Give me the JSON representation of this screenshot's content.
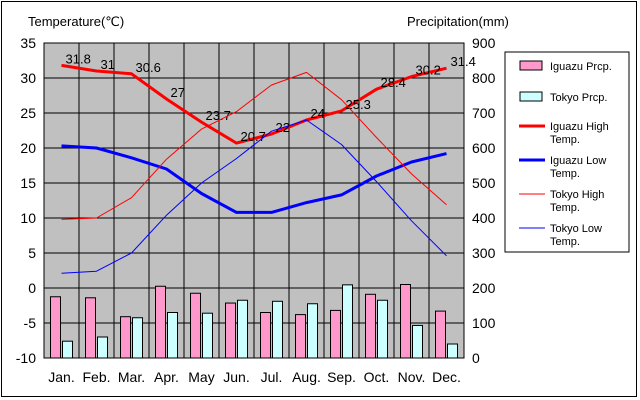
{
  "chart_data": {
    "type": "bar+line",
    "categories": [
      "Jan.",
      "Feb.",
      "Mar.",
      "Apr.",
      "May",
      "Jun.",
      "Jul.",
      "Aug.",
      "Sep.",
      "Oct.",
      "Nov.",
      "Dec."
    ],
    "left_axis": {
      "title": "Temperature(℃)",
      "range": [
        -10,
        35
      ],
      "ticks": [
        35,
        30,
        25,
        20,
        15,
        10,
        5,
        0,
        -5,
        -10
      ]
    },
    "right_axis": {
      "title": "Precipitation(mm)",
      "range": [
        0,
        900
      ],
      "ticks": [
        900,
        800,
        700,
        600,
        500,
        400,
        300,
        200,
        100,
        0
      ]
    },
    "grid": true,
    "plot_background": "#c0c0c0",
    "legend_position": "right",
    "bar_series": [
      {
        "name": "Iguazu Prcp.",
        "color": "#ff99cc",
        "values": [
          175,
          172,
          118,
          205,
          185,
          157,
          130,
          124,
          136,
          182,
          210,
          134
        ]
      },
      {
        "name": "Tokyo Prcp.",
        "color": "#ccffff",
        "values": [
          48,
          60,
          115,
          130,
          128,
          165,
          162,
          155,
          209,
          165,
          93,
          40
        ]
      }
    ],
    "line_series": [
      {
        "name": "Iguazu High Temp.",
        "color": "#ff0000",
        "width": 3,
        "values": [
          31.8,
          31,
          30.6,
          27,
          23.7,
          20.7,
          22,
          24,
          25.3,
          28.4,
          30.2,
          31.4
        ],
        "labels": [
          "31.8",
          "31",
          "30.6",
          "27",
          "23.7",
          "20.7",
          "22",
          "24",
          "25.3",
          "28.4",
          "30.2",
          "31.4"
        ]
      },
      {
        "name": "Iguazu Low Temp.",
        "color": "#0000ff",
        "width": 3,
        "values": [
          20.3,
          20,
          18.6,
          17,
          13.5,
          10.8,
          10.8,
          12.2,
          13.3,
          16,
          18,
          19.2
        ]
      },
      {
        "name": "Tokyo High Temp.",
        "color": "#ff0000",
        "width": 1,
        "values": [
          9.8,
          10,
          12.9,
          18.4,
          22.7,
          25.2,
          29,
          30.8,
          26.9,
          21.5,
          16.3,
          11.9
        ]
      },
      {
        "name": "Tokyo Low Temp.",
        "color": "#0000ff",
        "width": 1,
        "values": [
          2.1,
          2.4,
          5,
          10.4,
          15,
          18.5,
          22.4,
          24,
          20.5,
          15.2,
          9.6,
          4.6
        ]
      }
    ],
    "legend": [
      {
        "label": "Iguazu Prcp.",
        "kind": "box",
        "color": "#ff99cc"
      },
      {
        "label": "Tokyo Prcp.",
        "kind": "box",
        "color": "#ccffff"
      },
      {
        "label": "Iguazu High Temp.",
        "kind": "line",
        "color": "#ff0000",
        "width": 3
      },
      {
        "label": "Iguazu Low Temp.",
        "kind": "line",
        "color": "#0000ff",
        "width": 3
      },
      {
        "label": "Tokyo High Temp.",
        "kind": "line",
        "color": "#ff0000",
        "width": 1
      },
      {
        "label": "Tokyo Low Temp.",
        "kind": "line",
        "color": "#0000ff",
        "width": 1
      }
    ]
  }
}
